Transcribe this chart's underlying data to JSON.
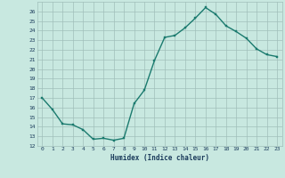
{
  "x": [
    0,
    1,
    2,
    3,
    4,
    5,
    6,
    7,
    8,
    9,
    10,
    11,
    12,
    13,
    14,
    15,
    16,
    17,
    18,
    19,
    20,
    21,
    22,
    23
  ],
  "y": [
    17,
    15.8,
    14.3,
    14.2,
    13.7,
    12.7,
    12.8,
    12.6,
    12.8,
    16.4,
    17.8,
    20.9,
    23.3,
    23.5,
    24.3,
    25.3,
    26.4,
    25.7,
    24.5,
    23.9,
    23.2,
    22.1,
    21.5,
    21.3
  ],
  "title": "",
  "xlabel": "Humidex (Indice chaleur)",
  "ylabel": "",
  "xlim": [
    -0.5,
    23.5
  ],
  "ylim": [
    12,
    27
  ],
  "yticks": [
    12,
    13,
    14,
    15,
    16,
    17,
    18,
    19,
    20,
    21,
    22,
    23,
    24,
    25,
    26
  ],
  "xticks": [
    0,
    1,
    2,
    3,
    4,
    5,
    6,
    7,
    8,
    9,
    10,
    11,
    12,
    13,
    14,
    15,
    16,
    17,
    18,
    19,
    20,
    21,
    22,
    23
  ],
  "line_color": "#1a7a6e",
  "bg_color": "#c8e8e0",
  "grid_color": "#a0bfba",
  "tick_color": "#1a3a5a",
  "xlabel_color": "#1a3a5a",
  "markersize": 2.0,
  "linewidth": 1.0
}
